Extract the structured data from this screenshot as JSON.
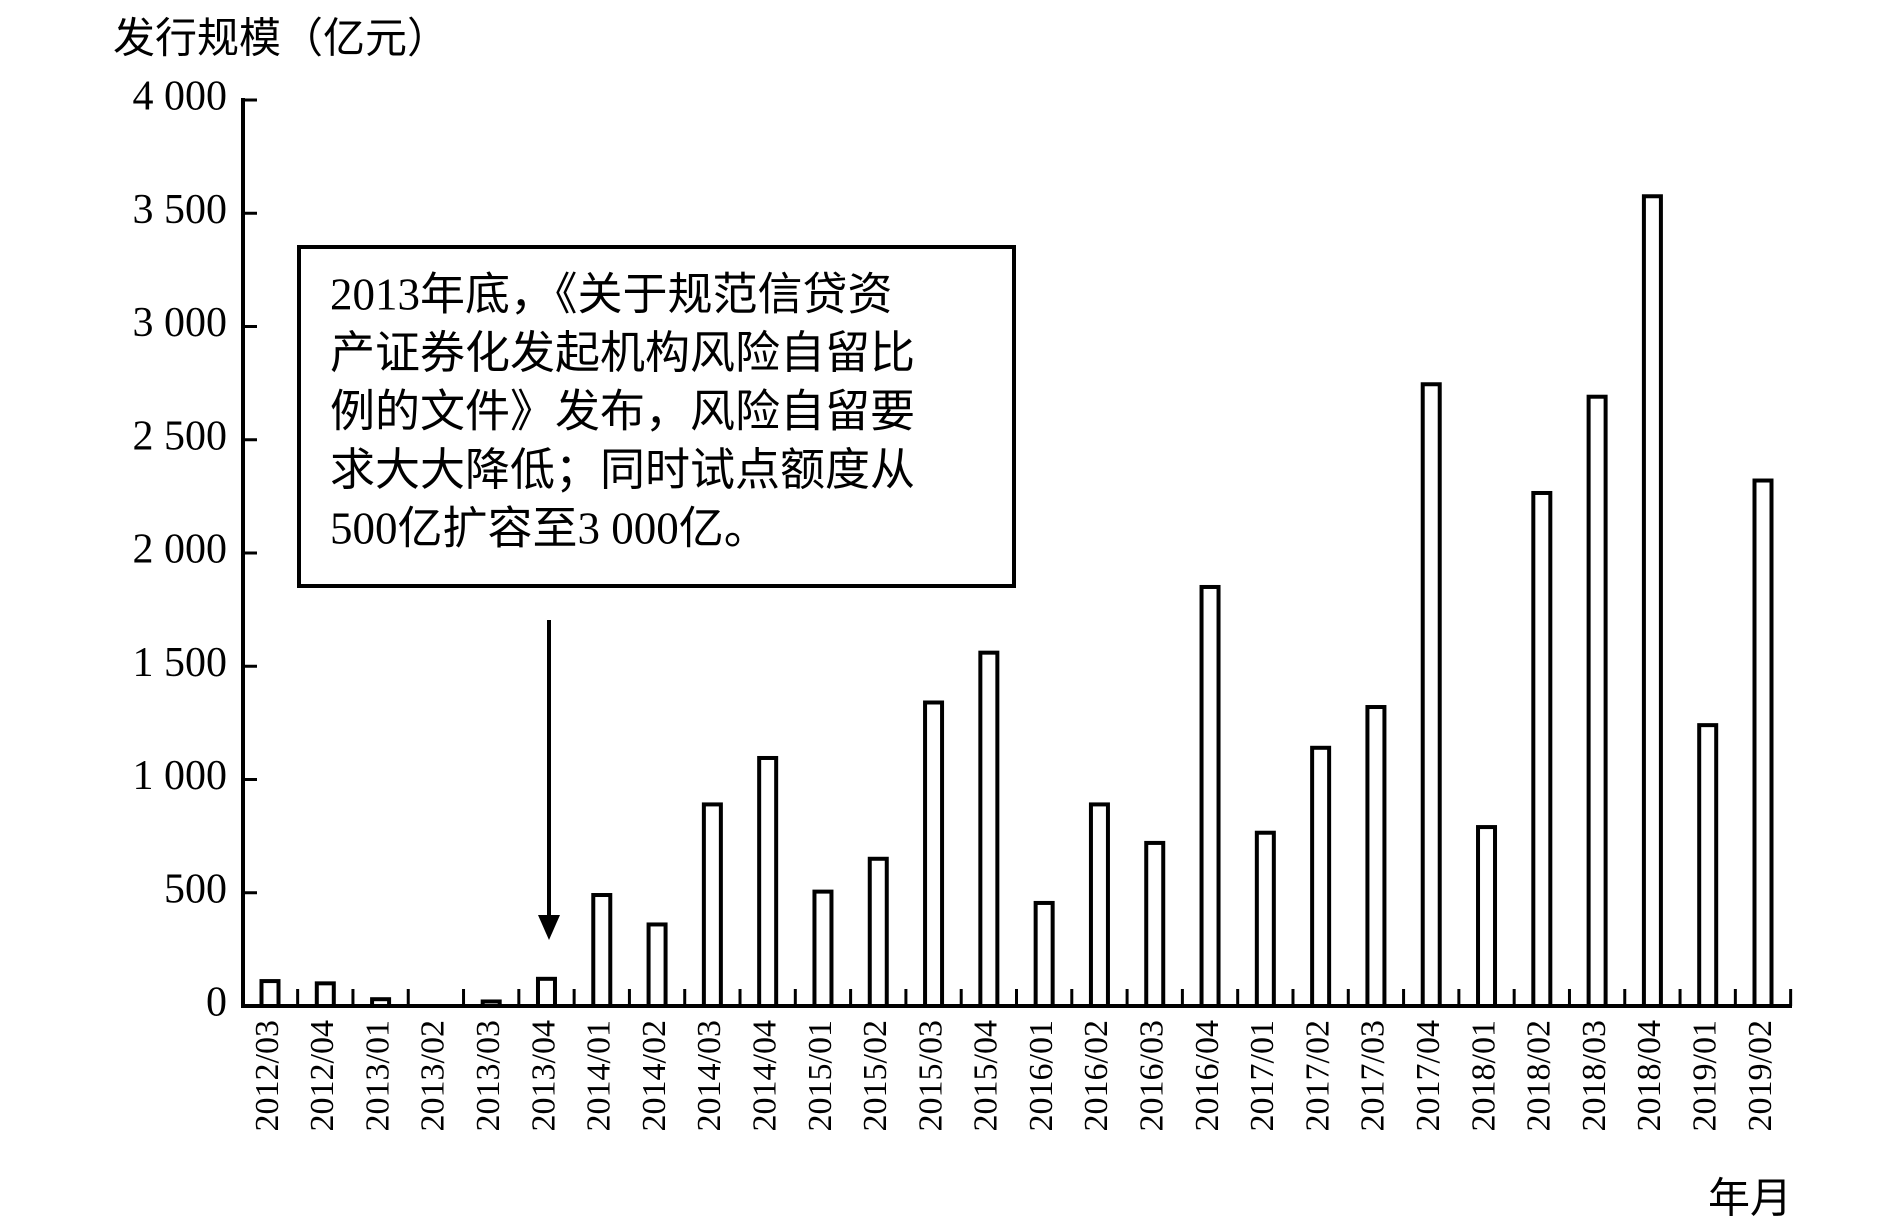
{
  "chart_data": {
    "type": "bar",
    "y_label": "发行规模（亿元）",
    "x_label": "年月",
    "categories": [
      "2012/03",
      "2012/04",
      "2013/01",
      "2013/02",
      "2013/03",
      "2013/04",
      "2014/01",
      "2014/02",
      "2014/03",
      "2014/04",
      "2015/01",
      "2015/02",
      "2015/03",
      "2015/04",
      "2016/01",
      "2016/02",
      "2016/03",
      "2016/04",
      "2017/01",
      "2017/02",
      "2017/03",
      "2017/04",
      "2018/01",
      "2018/02",
      "2018/03",
      "2018/04",
      "2019/01",
      "2019/02"
    ],
    "values": [
      110,
      100,
      30,
      0,
      20,
      120,
      490,
      360,
      890,
      1095,
      505,
      650,
      1340,
      1560,
      455,
      890,
      720,
      1850,
      765,
      1140,
      1320,
      2745,
      790,
      2265,
      2690,
      3575,
      1240,
      2320
    ],
    "color": "#ffffff",
    "ylim": [
      0,
      4000
    ],
    "yticks": [
      0,
      500,
      {
        "value": 1000,
        "label": "1 000"
      },
      {
        "value": 1500,
        "label": "1 500"
      },
      {
        "value": 2000,
        "label": "2 000"
      },
      {
        "value": 2500,
        "label": "2 500"
      },
      {
        "value": 3000,
        "label": "3 000"
      },
      {
        "value": 3500,
        "label": "3 500"
      },
      {
        "value": 4000,
        "label": "4 000"
      }
    ],
    "grid": false,
    "annotation": {
      "category": "2013/04",
      "lines": [
        "2013年底，《关于规范信贷资",
        "产证券化发起机构风险自留比",
        "例的文件》发布，风险自留要",
        "求大大降低；同时试点额度从",
        "500亿扩容至3 000亿。"
      ]
    }
  }
}
